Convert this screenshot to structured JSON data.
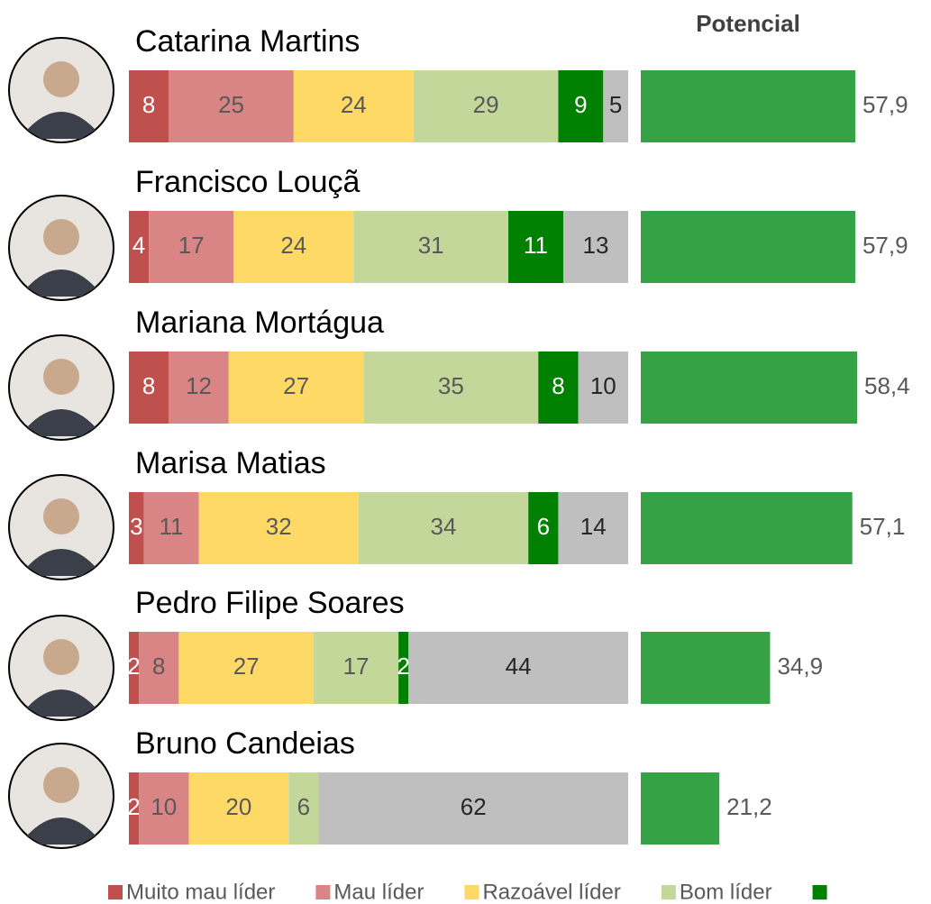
{
  "chart_data": [
    {
      "type": "stacked-bar",
      "categories": [
        "Catarina Martins",
        "Francisco Louçã",
        "Mariana Mortágua",
        "Marisa Matias",
        "Pedro Filipe Soares",
        "Bruno Candeias"
      ],
      "series": [
        {
          "name": "Muito mau líder",
          "color": "#c0504d",
          "label_color": "#ffffff",
          "in_legend": true,
          "values": [
            8,
            4,
            8,
            3,
            2,
            2
          ]
        },
        {
          "name": "Mau líder",
          "color": "#d98585",
          "label_color": "#595959",
          "in_legend": true,
          "values": [
            25,
            17,
            12,
            11,
            8,
            10
          ]
        },
        {
          "name": "Razoável líder",
          "color": "#ffd966",
          "label_color": "#595959",
          "in_legend": true,
          "values": [
            24,
            24,
            27,
            32,
            27,
            20
          ]
        },
        {
          "name": "Bom líder",
          "color": "#c4d79b",
          "label_color": "#595959",
          "in_legend": true,
          "values": [
            29,
            31,
            35,
            34,
            17,
            6
          ]
        },
        {
          "name": null,
          "color": "#008000",
          "label_color": "#ffffff",
          "in_legend": true,
          "values": [
            9,
            11,
            8,
            6,
            2,
            null
          ]
        },
        {
          "name": null,
          "color": "#bfbfbf",
          "label_color": "#262626",
          "in_legend": false,
          "values": [
            5,
            13,
            10,
            14,
            44,
            62
          ]
        }
      ],
      "xlim": [
        0,
        100
      ]
    },
    {
      "type": "bar",
      "title": "Potencial",
      "color": "#34a245",
      "values": [
        57.9,
        57.9,
        58.4,
        57.1,
        34.9,
        21.2
      ],
      "value_labels": [
        "57,9",
        "57,9",
        "58,4",
        "57,1",
        "34,9",
        "21,2"
      ],
      "xlim": [
        0,
        100
      ]
    }
  ]
}
